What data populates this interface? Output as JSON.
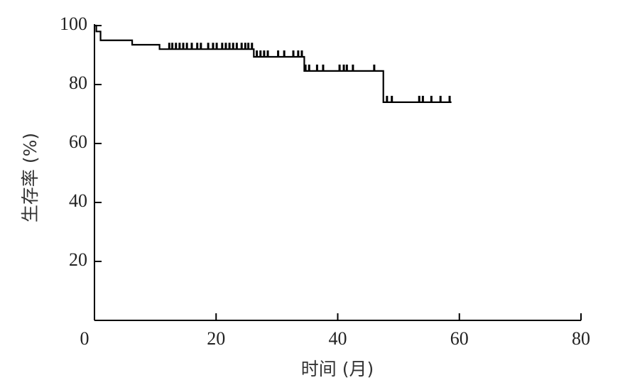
{
  "chart_data": {
    "type": "survival",
    "xlabel": "时间 (月)",
    "ylabel": "生存率 (%)",
    "xlim": [
      0,
      80
    ],
    "ylim": [
      0,
      100
    ],
    "xticks": [
      0,
      20,
      40,
      60,
      80
    ],
    "yticks": [
      20,
      40,
      60,
      80,
      100
    ],
    "color": "#000000",
    "series": [
      {
        "x": [
          0,
          0.3,
          1,
          6.2,
          10.7,
          26.2,
          34.5,
          47.5,
          58.7
        ],
        "values": [
          100,
          98,
          95,
          93.5,
          92,
          89.4,
          84.6,
          74,
          74
        ]
      }
    ],
    "censored": {
      "x": [
        12.3,
        12.8,
        13.4,
        14.0,
        14.6,
        15.2,
        16.0,
        16.9,
        17.5,
        18.7,
        19.5,
        20.1,
        21.0,
        21.6,
        22.2,
        22.8,
        23.4,
        24.2,
        24.8,
        25.3,
        25.9,
        26.7,
        27.3,
        27.9,
        28.5,
        30.2,
        31.2,
        32.7,
        33.5,
        34.1,
        34.7,
        35.3,
        36.6,
        37.6,
        40.3,
        41.0,
        41.5,
        42.5,
        46.0,
        48.1,
        48.9,
        53.4,
        54.0,
        55.4,
        56.9,
        58.4
      ],
      "values": [
        92,
        92,
        92,
        92,
        92,
        92,
        92,
        92,
        92,
        92,
        92,
        92,
        92,
        92,
        92,
        92,
        92,
        92,
        92,
        92,
        92,
        89.4,
        89.4,
        89.4,
        89.4,
        89.4,
        89.4,
        89.4,
        89.4,
        89.4,
        84.6,
        84.6,
        84.6,
        84.6,
        84.6,
        84.6,
        84.6,
        84.6,
        84.6,
        74,
        74,
        74,
        74,
        74,
        74,
        74
      ]
    }
  }
}
